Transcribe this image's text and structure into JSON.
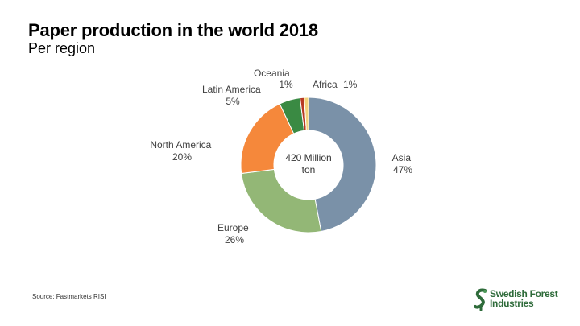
{
  "title": "Paper production in the world 2018",
  "subtitle": "Per region",
  "source": "Source: Fastmarkets RISI",
  "logo": {
    "line1": "Swedish Forest",
    "line2": "Industries",
    "icon": "swedish-forest-industries-logo-icon",
    "color": "#2e6b3a"
  },
  "chart_data": {
    "type": "pie",
    "style": "donut",
    "center_label": [
      "420 Million",
      "ton"
    ],
    "slices": [
      {
        "name": "Asia",
        "value": 47,
        "label": "47%",
        "color": "#7a91a8"
      },
      {
        "name": "Europe",
        "value": 26,
        "label": "26%",
        "color": "#93b776"
      },
      {
        "name": "North America",
        "value": 20,
        "label": "20%",
        "color": "#f5883b"
      },
      {
        "name": "Latin America",
        "value": 5,
        "label": "5%",
        "color": "#3a8a43"
      },
      {
        "name": "Oceania",
        "value": 1,
        "label": "1%",
        "color": "#b83a22"
      },
      {
        "name": "Africa",
        "value": 1,
        "label": "1%",
        "color": "#f3d27a"
      }
    ]
  }
}
